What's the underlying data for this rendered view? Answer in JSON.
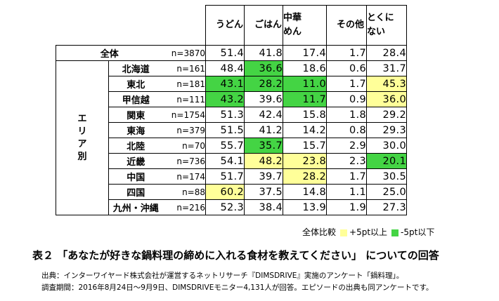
{
  "columns": [
    {
      "label": "うどん"
    },
    {
      "label": "ごはん"
    },
    {
      "label": "中華めん",
      "line1": "中華",
      "line2": "めん"
    },
    {
      "label": "その他"
    },
    {
      "label": "とくにない",
      "line1": "とくに",
      "line2": "ない"
    }
  ],
  "total": {
    "name": "全体",
    "n": "n=3870",
    "values": [
      "51.4",
      "41.8",
      "17.4",
      "1.7",
      "28.4"
    ]
  },
  "region_group_label": "エリア別",
  "region_group_chars": [
    "エ",
    "リ",
    "ア",
    "別"
  ],
  "rows": [
    {
      "name": "北海道",
      "n": "n=161",
      "values": [
        "48.4",
        "36.6",
        "18.6",
        "0.6",
        "31.7"
      ],
      "marks": [
        "",
        "lo",
        "",
        "",
        ""
      ]
    },
    {
      "name": "東北",
      "n": "n=181",
      "values": [
        "43.1",
        "28.2",
        "11.0",
        "1.7",
        "45.3"
      ],
      "marks": [
        "lo",
        "lo",
        "lo",
        "",
        "hi"
      ]
    },
    {
      "name": "甲信越",
      "n": "n=111",
      "values": [
        "43.2",
        "39.6",
        "11.7",
        "0.9",
        "36.0"
      ],
      "marks": [
        "lo",
        "",
        "lo",
        "",
        "hi"
      ]
    },
    {
      "name": "関東",
      "n": "n=1754",
      "values": [
        "51.3",
        "42.4",
        "15.8",
        "1.8",
        "29.2"
      ],
      "marks": [
        "",
        "",
        "",
        "",
        ""
      ]
    },
    {
      "name": "東海",
      "n": "n=379",
      "values": [
        "51.5",
        "41.2",
        "14.2",
        "0.8",
        "29.3"
      ],
      "marks": [
        "",
        "",
        "",
        "",
        ""
      ]
    },
    {
      "name": "北陸",
      "n": "n=70",
      "values": [
        "55.7",
        "35.7",
        "15.7",
        "2.9",
        "30.0"
      ],
      "marks": [
        "",
        "lo",
        "",
        "",
        ""
      ]
    },
    {
      "name": "近畿",
      "n": "n=736",
      "values": [
        "54.1",
        "48.2",
        "23.8",
        "2.3",
        "20.1"
      ],
      "marks": [
        "",
        "hi",
        "hi",
        "",
        "lo"
      ]
    },
    {
      "name": "中国",
      "n": "n=174",
      "values": [
        "51.7",
        "39.7",
        "28.2",
        "1.7",
        "30.5"
      ],
      "marks": [
        "",
        "",
        "hi",
        "",
        ""
      ]
    },
    {
      "name": "四国",
      "n": "n=88",
      "values": [
        "60.2",
        "37.5",
        "14.8",
        "1.1",
        "25.0"
      ],
      "marks": [
        "hi",
        "",
        "",
        "",
        ""
      ]
    },
    {
      "name": "九州・沖縄",
      "n": "n=216",
      "values": [
        "52.3",
        "38.4",
        "13.9",
        "1.9",
        "27.3"
      ],
      "marks": [
        "",
        "",
        "",
        "",
        ""
      ]
    }
  ],
  "legend": {
    "base": "全体比較",
    "hi_label": "+5pt以上",
    "lo_label": "-5pt以下",
    "hi_color": "#ffff99",
    "lo_color": "#44d444"
  },
  "caption": "表２ 「あなたが好きな鍋料理の締めに入れる食材を教えてください」 についての回答",
  "source_line1": "出典：インターワイヤード株式会社が運営するネットリサーチ『DIMSDRIVE』実施のアンケート「鍋料理」。",
  "source_line2": "調査期間：2016年8月24日～9月9日、DIMSDRIVEモニター4,131人が回答。エピソードの出典も同アンケートです。"
}
